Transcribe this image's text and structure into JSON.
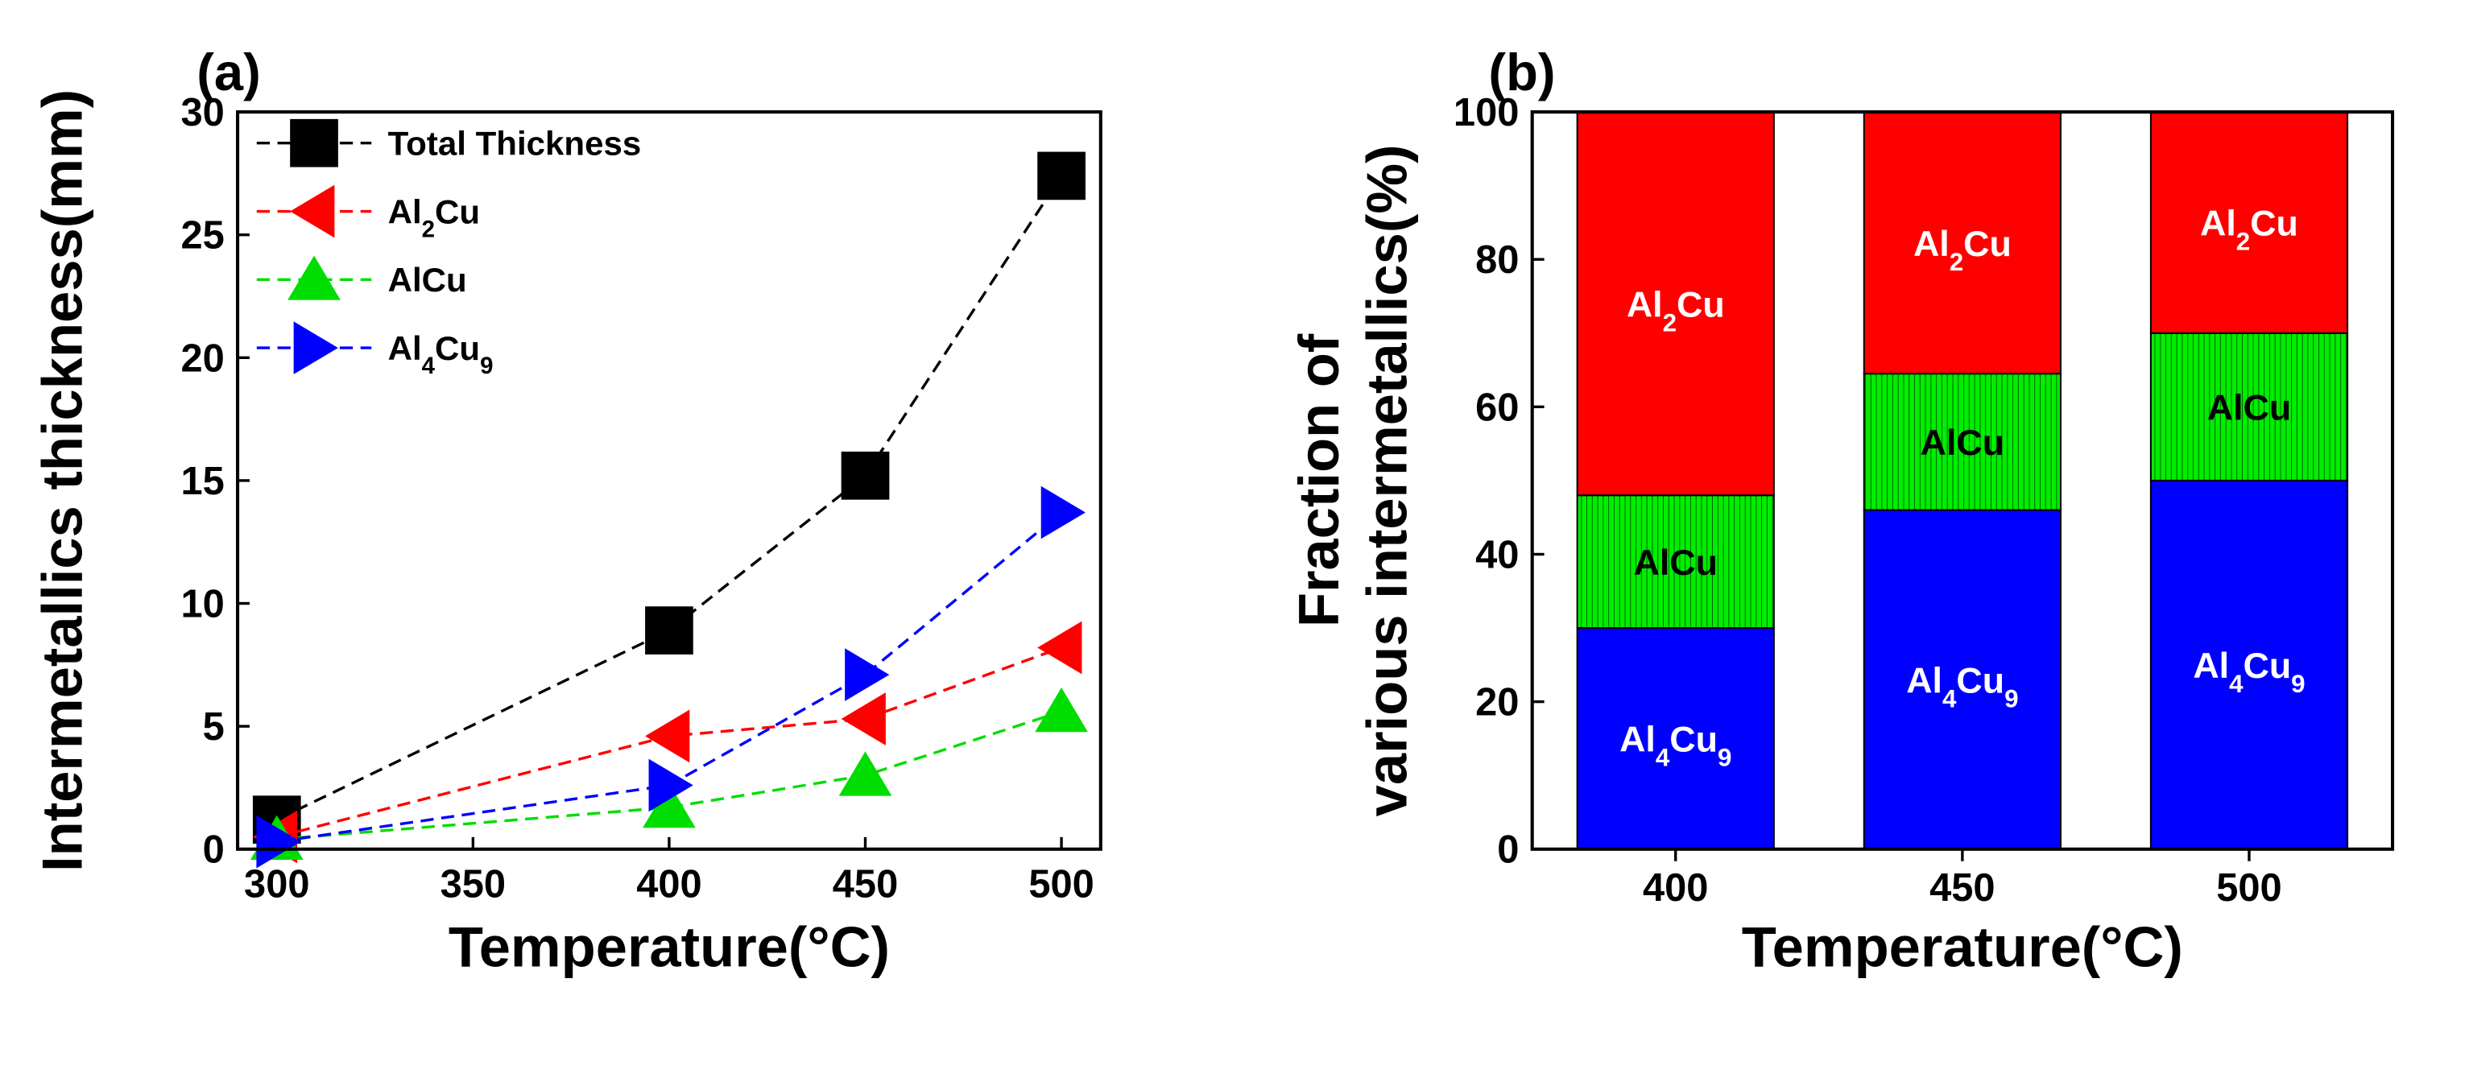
{
  "chart_data": [
    {
      "panel": "(a)",
      "type": "line",
      "xlabel": "Temperature(°C)",
      "ylabel": "Intermetallics thickness(mm)",
      "xlim": [
        290,
        510
      ],
      "ylim": [
        0,
        30
      ],
      "xticks": [
        300,
        350,
        400,
        450,
        500
      ],
      "yticks": [
        0,
        5,
        10,
        15,
        20,
        25,
        30
      ],
      "legend_position": "top-left",
      "series": [
        {
          "name": "Total Thickness",
          "label_parts": [
            [
              "Total Thickness",
              ""
            ]
          ],
          "marker": "square",
          "color": "#000000",
          "x": [
            300,
            400,
            450,
            500
          ],
          "y": [
            1.2,
            8.9,
            15.2,
            27.4
          ]
        },
        {
          "name": "Al2Cu",
          "label_parts": [
            [
              "Al",
              ""
            ],
            [
              "2",
              "sub"
            ],
            [
              "Cu",
              ""
            ]
          ],
          "marker": "triangle-left",
          "color": "#ff0000",
          "x": [
            300,
            400,
            450,
            500
          ],
          "y": [
            0.5,
            4.6,
            5.3,
            8.2
          ]
        },
        {
          "name": "AlCu",
          "label_parts": [
            [
              "AlCu",
              ""
            ]
          ],
          "marker": "triangle-up",
          "color": "#00dd00",
          "x": [
            300,
            400,
            450,
            500
          ],
          "y": [
            0.4,
            1.7,
            3.0,
            5.6
          ]
        },
        {
          "name": "Al4Cu9",
          "label_parts": [
            [
              "Al",
              ""
            ],
            [
              "4",
              "sub"
            ],
            [
              "Cu",
              ""
            ],
            [
              "9",
              "sub"
            ]
          ],
          "marker": "triangle-right",
          "color": "#0000ff",
          "x": [
            300,
            400,
            450,
            500
          ],
          "y": [
            0.3,
            2.6,
            7.1,
            13.7
          ]
        }
      ]
    },
    {
      "panel": "(b)",
      "type": "bar",
      "stacked": true,
      "xlabel": "Temperature(°C)",
      "ylabel_lines": [
        "Fraction of",
        "various intermetallics(%)"
      ],
      "ylim": [
        0,
        100
      ],
      "yticks": [
        0,
        20,
        40,
        60,
        80,
        100
      ],
      "categories": [
        "400",
        "450",
        "500"
      ],
      "series": [
        {
          "name": "Al4Cu9",
          "label_parts": [
            [
              "Al",
              ""
            ],
            [
              "4",
              "sub"
            ],
            [
              "Cu",
              ""
            ],
            [
              "9",
              "sub"
            ]
          ],
          "color": "#0000ff",
          "label_color": "#ffffff",
          "values": [
            30,
            46,
            50
          ]
        },
        {
          "name": "AlCu",
          "label_parts": [
            [
              "AlCu",
              ""
            ]
          ],
          "color": "#00ee00",
          "label_color": "#000000",
          "values": [
            18,
            18.5,
            20
          ]
        },
        {
          "name": "Al2Cu",
          "label_parts": [
            [
              "Al",
              ""
            ],
            [
              "2",
              "sub"
            ],
            [
              "Cu",
              ""
            ]
          ],
          "color": "#ff0000",
          "label_color": "#ffffff",
          "values": [
            52,
            35.5,
            30
          ]
        }
      ]
    }
  ]
}
